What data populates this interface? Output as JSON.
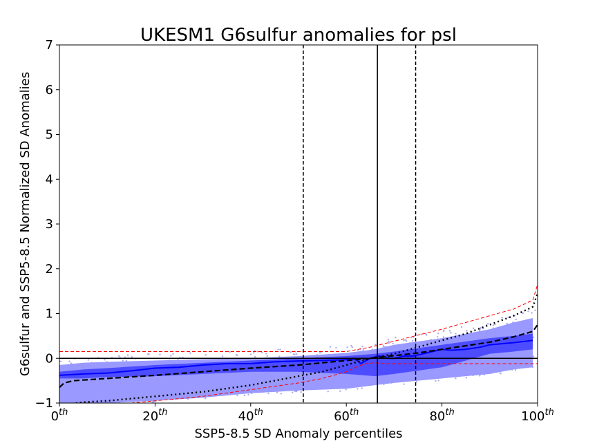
{
  "chart_data": {
    "type": "line",
    "title": "UKESM1 G6sulfur anomalies for psl",
    "xlabel": "SSP5-8.5 SD Anomaly percentiles",
    "ylabel": "G6sulfur and SSP5-8.5 Normalized SD Anomalies",
    "xlim": [
      0,
      100
    ],
    "ylim": [
      -1,
      7
    ],
    "x_ticks": [
      {
        "value": 0,
        "base": "0",
        "sup": "th"
      },
      {
        "value": 20,
        "base": "20",
        "sup": "th"
      },
      {
        "value": 40,
        "base": "40",
        "sup": "th"
      },
      {
        "value": 60,
        "base": "60",
        "sup": "th"
      },
      {
        "value": 80,
        "base": "80",
        "sup": "th"
      },
      {
        "value": 100,
        "base": "100",
        "sup": "th"
      }
    ],
    "y_ticks": [
      "-1",
      "0",
      "1",
      "2",
      "3",
      "4",
      "5",
      "6",
      "7"
    ],
    "grid": false,
    "legend": "none",
    "vertical_lines": [
      {
        "x": 51,
        "style": "dashed",
        "color": "#000000"
      },
      {
        "x": 66.5,
        "style": "solid",
        "color": "#000000"
      },
      {
        "x": 74.5,
        "style": "dashed",
        "color": "#000000"
      }
    ],
    "horizontal_lines": [
      {
        "y": 0,
        "style": "solid",
        "color": "#000000"
      }
    ],
    "colors": {
      "outer_band": "#9999ff",
      "inner_band": "#4d4dff",
      "median": "#0000ff",
      "scatter": "#aaaaee",
      "ssp_dashed": "#000000",
      "ssp_dotted": "#000000",
      "thresholds": "#ff0000"
    },
    "series": [
      {
        "style": "solid-blue",
        "x": [
          0,
          5,
          10,
          15,
          20,
          25,
          30,
          35,
          40,
          45,
          50,
          55,
          60,
          62,
          63,
          65,
          66,
          67,
          68,
          69,
          70,
          72,
          74,
          76,
          78,
          80,
          82,
          85,
          88,
          90,
          95,
          99
        ],
        "y": [
          -0.38,
          -0.35,
          -0.33,
          -0.28,
          -0.22,
          -0.2,
          -0.15,
          -0.12,
          -0.12,
          -0.08,
          -0.06,
          -0.05,
          -0.03,
          -0.02,
          -0.12,
          0.0,
          0.03,
          0.05,
          0.04,
          0.0,
          0.0,
          0.05,
          0.05,
          0.1,
          0.15,
          0.2,
          0.18,
          0.2,
          0.25,
          0.3,
          0.35,
          0.4
        ]
      },
      {
        "style": "dashed-black",
        "x": [
          0,
          1,
          3,
          10,
          20,
          30,
          40,
          50,
          60,
          65,
          70,
          75,
          80,
          85,
          90,
          95,
          99,
          100
        ],
        "y": [
          -0.65,
          -0.55,
          -0.5,
          -0.45,
          -0.38,
          -0.3,
          -0.22,
          -0.15,
          -0.05,
          0.0,
          0.06,
          0.12,
          0.2,
          0.28,
          0.36,
          0.48,
          0.6,
          0.75
        ]
      },
      {
        "style": "dotted-black",
        "x": [
          0,
          5,
          10,
          20,
          30,
          40,
          50,
          55,
          60,
          65,
          70,
          75,
          80,
          85,
          90,
          95,
          99,
          100
        ],
        "y": [
          -1.05,
          -0.98,
          -0.95,
          -0.85,
          -0.75,
          -0.6,
          -0.4,
          -0.3,
          -0.15,
          0.0,
          0.1,
          0.25,
          0.4,
          0.55,
          0.75,
          0.95,
          1.15,
          1.45
        ]
      },
      {
        "style": "red-dashed-upper",
        "x": [
          0,
          10,
          20,
          30,
          40,
          50,
          55,
          60,
          65,
          70,
          75,
          80,
          85,
          90,
          95,
          99,
          100
        ],
        "y": [
          0.15,
          0.15,
          0.15,
          0.15,
          0.15,
          0.15,
          0.15,
          0.15,
          0.25,
          0.38,
          0.52,
          0.65,
          0.8,
          0.95,
          1.1,
          1.3,
          1.65
        ]
      },
      {
        "style": "red-dashed-lower",
        "x": [
          0,
          10,
          20,
          30,
          40,
          50,
          55,
          60,
          62,
          64,
          66,
          68,
          70,
          80,
          90,
          100
        ],
        "y": [
          -1.1,
          -1.05,
          -0.95,
          -0.85,
          -0.7,
          -0.55,
          -0.45,
          -0.3,
          -0.2,
          -0.12,
          -0.1,
          -0.12,
          -0.12,
          -0.12,
          -0.12,
          -0.12
        ]
      }
    ],
    "bands": [
      {
        "style": "outer",
        "x": [
          0,
          5,
          10,
          20,
          30,
          40,
          50,
          60,
          66,
          70,
          80,
          90,
          95,
          99
        ],
        "upper": [
          -0.15,
          -0.1,
          -0.08,
          -0.05,
          -0.02,
          0.0,
          0.05,
          0.12,
          0.2,
          0.3,
          0.45,
          0.65,
          0.8,
          0.9
        ],
        "lower": [
          -1.1,
          -1.05,
          -1.0,
          -0.95,
          -0.88,
          -0.78,
          -0.72,
          -0.68,
          -0.6,
          -0.55,
          -0.45,
          -0.35,
          -0.25,
          -0.2
        ]
      },
      {
        "style": "inner",
        "x": [
          0,
          5,
          10,
          20,
          30,
          40,
          50,
          60,
          66,
          70,
          80,
          90,
          95,
          99
        ],
        "upper": [
          -0.3,
          -0.25,
          -0.22,
          -0.15,
          -0.1,
          -0.05,
          0.0,
          0.05,
          0.1,
          0.15,
          0.3,
          0.45,
          0.5,
          0.55
        ],
        "lower": [
          -0.45,
          -0.45,
          -0.42,
          -0.4,
          -0.35,
          -0.3,
          -0.3,
          -0.35,
          -0.4,
          -0.35,
          -0.2,
          0.1,
          0.15,
          0.2
        ]
      }
    ]
  }
}
